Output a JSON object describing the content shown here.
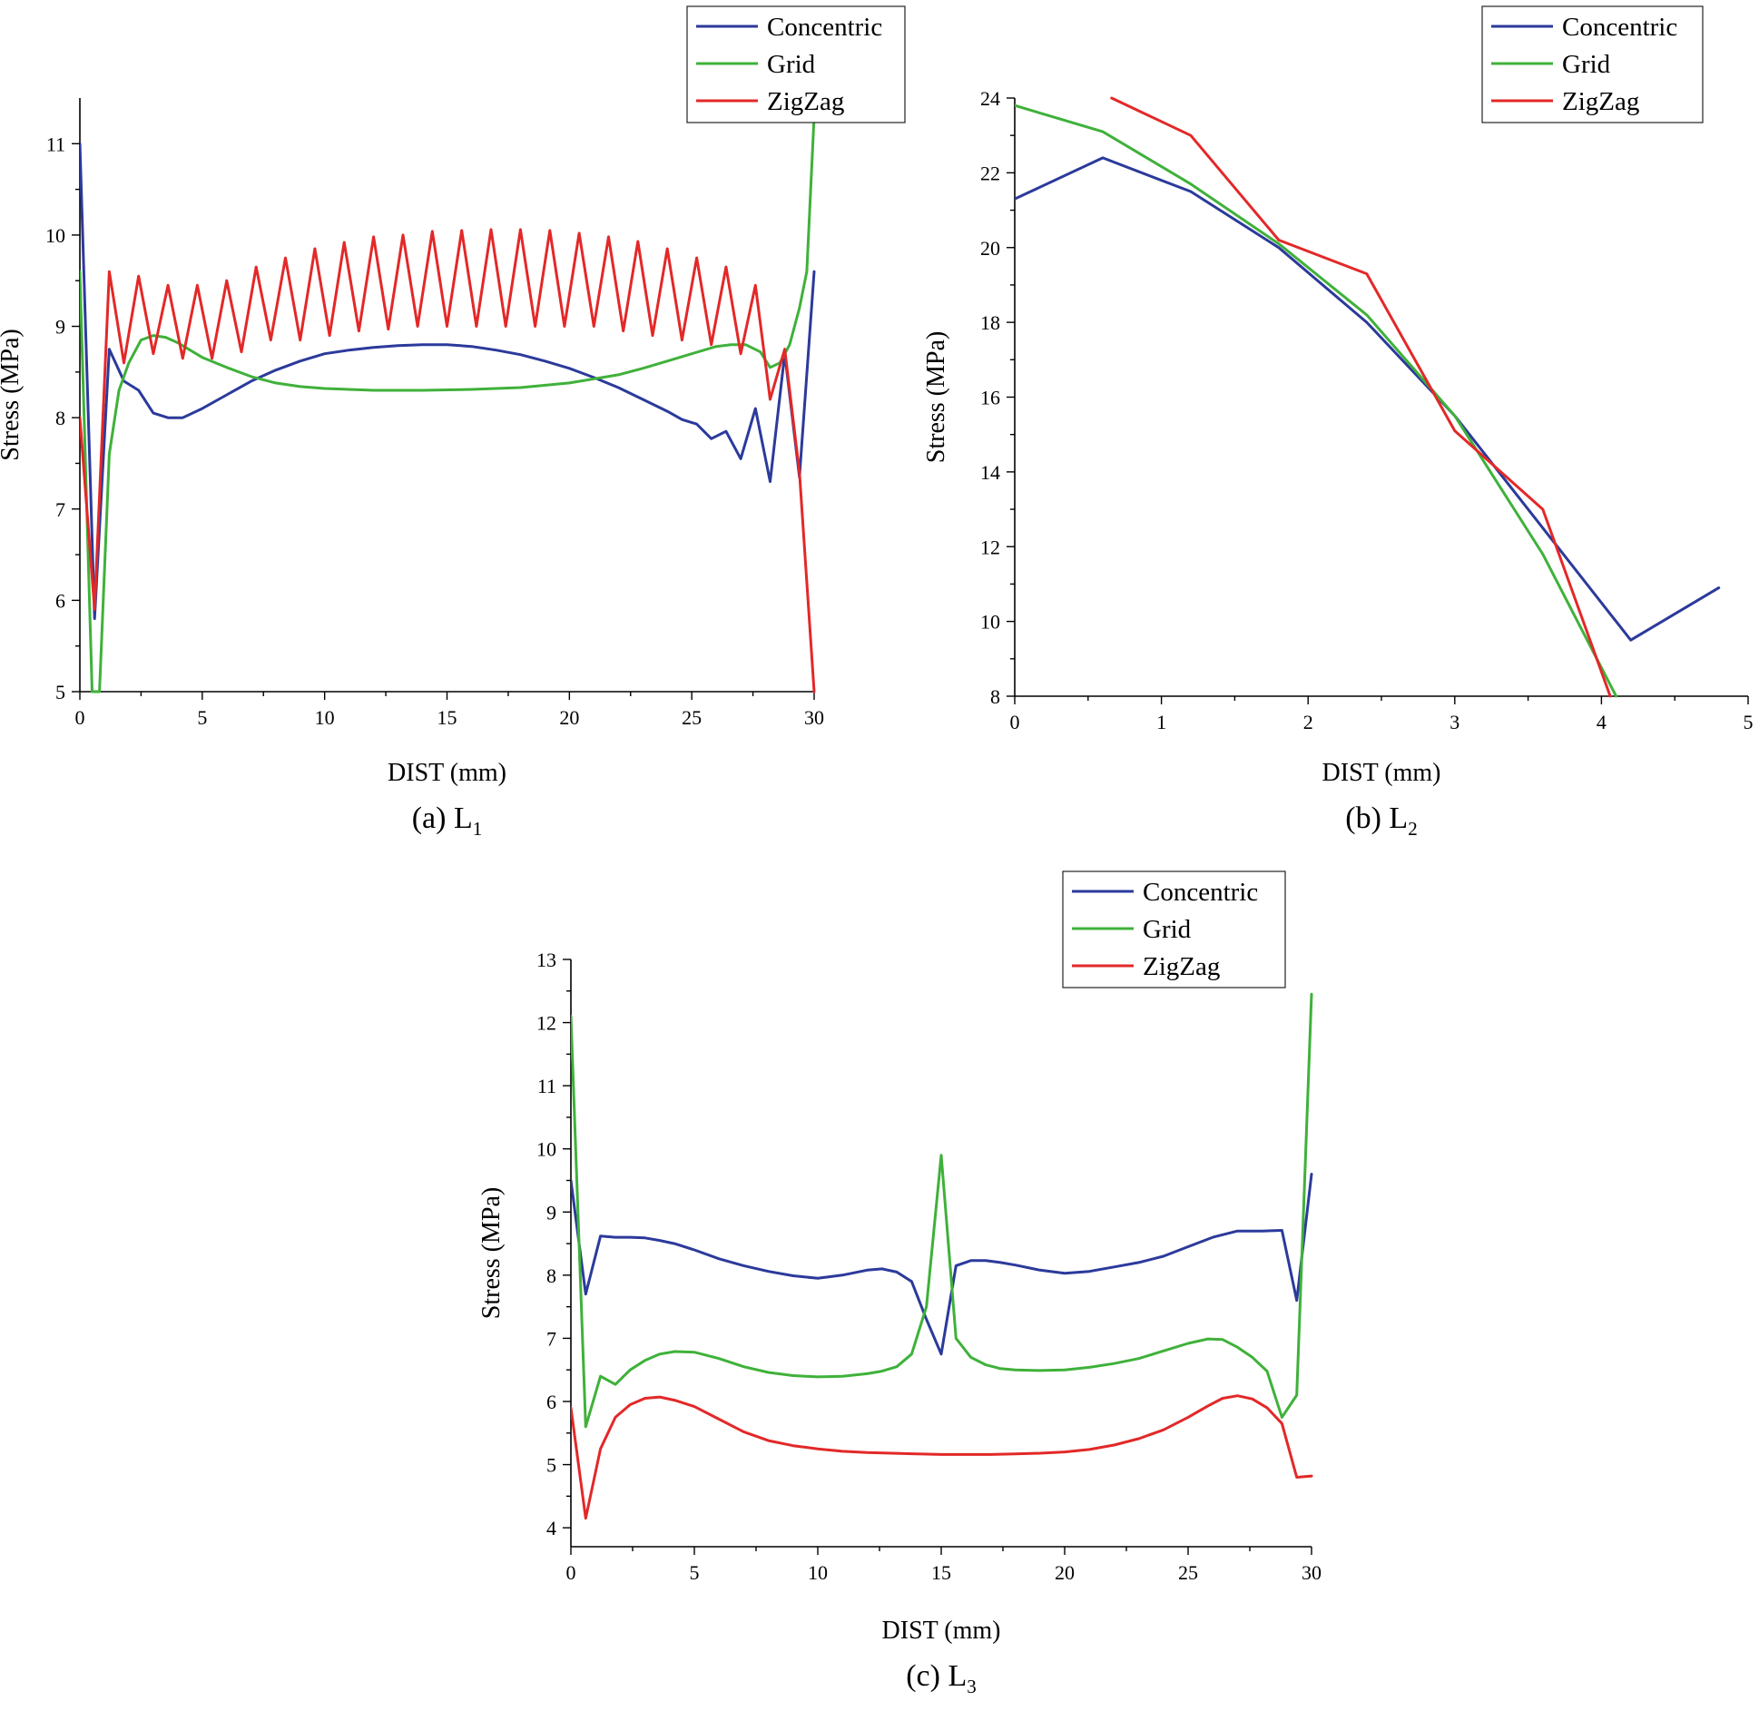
{
  "chart_data": [
    {
      "type": "line",
      "panel": "a",
      "caption": "(a) L",
      "caption_sub": "1",
      "xlabel": "DIST (mm)",
      "ylabel": "Stress (MPa)",
      "xlim": [
        0,
        30
      ],
      "ylim": [
        5,
        11.5
      ],
      "xticks": [
        0,
        5,
        10,
        15,
        20,
        25,
        30
      ],
      "yticks": [
        5,
        6,
        7,
        8,
        9,
        10,
        11
      ],
      "legend_position": "top-right",
      "series": [
        {
          "name": "Concentric",
          "color": "#2b3a9b",
          "x": [
            0,
            0.6,
            1.2,
            1.8,
            2.4,
            3.0,
            3.6,
            4.2,
            5,
            6,
            7,
            8,
            9,
            10,
            11,
            12,
            13,
            14,
            15,
            16,
            17,
            18,
            19,
            20,
            21,
            22,
            23,
            24,
            24.6,
            25.2,
            25.8,
            26.4,
            27.0,
            27.6,
            28.2,
            28.8,
            29.4,
            30
          ],
          "y": [
            11.0,
            5.8,
            8.75,
            8.4,
            8.3,
            8.05,
            8.0,
            8.0,
            8.1,
            8.25,
            8.4,
            8.52,
            8.62,
            8.7,
            8.74,
            8.77,
            8.79,
            8.8,
            8.8,
            8.78,
            8.74,
            8.69,
            8.62,
            8.54,
            8.44,
            8.33,
            8.2,
            8.07,
            7.98,
            7.93,
            7.77,
            7.85,
            7.55,
            8.1,
            7.3,
            8.7,
            7.35,
            9.6
          ]
        },
        {
          "name": "Grid",
          "color": "#3fb13a",
          "x": [
            0,
            0.5,
            0.8,
            1.2,
            1.6,
            2.0,
            2.5,
            3.0,
            3.5,
            4,
            5,
            6,
            7,
            8,
            9,
            10,
            12,
            14,
            16,
            18,
            20,
            22,
            23,
            24,
            25,
            26,
            26.6,
            27.2,
            27.8,
            28.2,
            28.6,
            29.0,
            29.4,
            29.7,
            30
          ],
          "y": [
            9.6,
            5.0,
            5.0,
            7.6,
            8.3,
            8.6,
            8.85,
            8.9,
            8.88,
            8.82,
            8.66,
            8.55,
            8.45,
            8.38,
            8.34,
            8.32,
            8.3,
            8.3,
            8.31,
            8.33,
            8.38,
            8.47,
            8.54,
            8.62,
            8.7,
            8.78,
            8.8,
            8.8,
            8.72,
            8.55,
            8.6,
            8.8,
            9.2,
            9.6,
            11.3
          ]
        },
        {
          "name": "ZigZag",
          "color": "#e32828",
          "x": [
            0,
            0.6,
            1.2,
            1.8,
            2.4,
            3.0,
            3.6,
            4.2,
            4.8,
            5.4,
            6.0,
            6.6,
            7.2,
            7.8,
            8.4,
            9.0,
            9.6,
            10.2,
            10.8,
            11.4,
            12.0,
            12.6,
            13.2,
            13.8,
            14.4,
            15.0,
            15.6,
            16.2,
            16.8,
            17.4,
            18.0,
            18.6,
            19.2,
            19.8,
            20.4,
            21.0,
            21.6,
            22.2,
            22.8,
            23.4,
            24.0,
            24.6,
            25.2,
            25.8,
            26.4,
            27.0,
            27.6,
            28.2,
            28.8,
            29.4,
            30
          ],
          "y": [
            8.0,
            5.9,
            9.6,
            8.6,
            9.55,
            8.7,
            9.45,
            8.65,
            9.45,
            8.65,
            9.5,
            8.72,
            9.65,
            8.85,
            9.75,
            8.85,
            9.85,
            8.9,
            9.92,
            8.95,
            9.98,
            8.97,
            10.0,
            9.0,
            10.04,
            9.0,
            10.05,
            9.0,
            10.06,
            9.0,
            10.06,
            9.0,
            10.05,
            9.0,
            10.02,
            9.0,
            9.98,
            8.95,
            9.93,
            8.9,
            9.85,
            8.85,
            9.75,
            8.8,
            9.65,
            8.7,
            9.45,
            8.2,
            8.75,
            7.4,
            5.0
          ]
        }
      ]
    },
    {
      "type": "line",
      "panel": "b",
      "caption": "(b) L",
      "caption_sub": "2",
      "xlabel": "DIST (mm)",
      "ylabel": "Stress (MPa)",
      "xlim": [
        0,
        5
      ],
      "ylim": [
        8,
        24
      ],
      "xticks": [
        0,
        1,
        2,
        3,
        4,
        5
      ],
      "yticks": [
        8,
        10,
        12,
        14,
        16,
        18,
        20,
        22,
        24
      ],
      "legend_position": "top-right",
      "series": [
        {
          "name": "Concentric",
          "color": "#2b3a9b",
          "x": [
            0,
            0.6,
            1.2,
            1.8,
            2.4,
            3.0,
            3.6,
            4.2,
            4.8
          ],
          "y": [
            21.3,
            22.4,
            21.5,
            20.0,
            18.0,
            15.5,
            12.5,
            9.5,
            10.9
          ]
        },
        {
          "name": "Grid",
          "color": "#3fb13a",
          "x": [
            0,
            0.6,
            1.2,
            1.8,
            2.4,
            3.0,
            3.6,
            4.1
          ],
          "y": [
            23.8,
            23.1,
            21.7,
            20.1,
            18.2,
            15.5,
            11.8,
            8.0
          ]
        },
        {
          "name": "ZigZag",
          "color": "#e32828",
          "x": [
            0.66,
            1.2,
            1.8,
            2.4,
            3.0,
            3.6,
            4.06
          ],
          "y": [
            24.0,
            23.0,
            20.2,
            19.3,
            15.1,
            13.0,
            8.0
          ]
        }
      ]
    },
    {
      "type": "line",
      "panel": "c",
      "caption": "(c) L",
      "caption_sub": "3",
      "xlabel": "DIST (mm)",
      "ylabel": "Stress (MPa)",
      "xlim": [
        0,
        30
      ],
      "ylim": [
        3.7,
        13
      ],
      "xticks": [
        0,
        5,
        10,
        15,
        20,
        25,
        30
      ],
      "yticks": [
        4,
        5,
        6,
        7,
        8,
        9,
        10,
        11,
        12,
        13
      ],
      "legend_position": "top-right",
      "series": [
        {
          "name": "Concentric",
          "color": "#2b3a9b",
          "x": [
            0,
            0.6,
            1.2,
            1.8,
            2.4,
            3.0,
            3.6,
            4.2,
            5,
            6,
            7,
            8,
            9,
            10,
            11,
            12,
            12.6,
            13.2,
            13.8,
            14.4,
            15.0,
            15.6,
            16.2,
            16.8,
            17.4,
            18,
            19,
            20,
            21,
            22,
            23,
            24,
            25,
            26,
            27,
            28,
            28.8,
            29.4,
            30
          ],
          "y": [
            9.5,
            7.7,
            8.62,
            8.6,
            8.6,
            8.59,
            8.55,
            8.5,
            8.4,
            8.26,
            8.15,
            8.06,
            7.99,
            7.95,
            8.0,
            8.08,
            8.1,
            8.05,
            7.9,
            7.3,
            6.75,
            8.15,
            8.23,
            8.23,
            8.2,
            8.16,
            8.08,
            8.03,
            8.06,
            8.13,
            8.2,
            8.3,
            8.45,
            8.6,
            8.7,
            8.7,
            8.71,
            7.6,
            9.6
          ]
        },
        {
          "name": "Grid",
          "color": "#3fb13a",
          "x": [
            0,
            0.6,
            1.2,
            1.8,
            2.4,
            3.0,
            3.6,
            4.2,
            5,
            6,
            7,
            8,
            9,
            10,
            11,
            12,
            12.6,
            13.2,
            13.8,
            14.4,
            15.0,
            15.6,
            16.2,
            16.8,
            17.4,
            18,
            19,
            20,
            21,
            22,
            23,
            24,
            25,
            25.8,
            26.4,
            27.0,
            27.6,
            28.2,
            28.8,
            29.4,
            30
          ],
          "y": [
            12.1,
            5.6,
            6.4,
            6.27,
            6.5,
            6.65,
            6.75,
            6.79,
            6.78,
            6.68,
            6.55,
            6.46,
            6.41,
            6.39,
            6.4,
            6.44,
            6.48,
            6.55,
            6.75,
            7.5,
            9.9,
            7.0,
            6.7,
            6.58,
            6.52,
            6.5,
            6.49,
            6.5,
            6.54,
            6.6,
            6.68,
            6.8,
            6.92,
            6.99,
            6.98,
            6.86,
            6.7,
            6.48,
            5.75,
            6.1,
            12.45
          ]
        },
        {
          "name": "ZigZag",
          "color": "#e32828",
          "x": [
            0,
            0.6,
            1.2,
            1.8,
            2.4,
            3.0,
            3.6,
            4.2,
            5,
            6,
            7,
            8,
            9,
            10,
            11,
            12,
            13,
            14,
            15,
            16,
            17,
            18,
            19,
            20,
            21,
            22,
            23,
            24,
            25,
            25.8,
            26.4,
            27.0,
            27.6,
            28.2,
            28.8,
            29.4,
            30
          ],
          "y": [
            5.9,
            4.15,
            5.25,
            5.75,
            5.95,
            6.05,
            6.07,
            6.02,
            5.92,
            5.72,
            5.52,
            5.38,
            5.3,
            5.25,
            5.21,
            5.19,
            5.18,
            5.17,
            5.16,
            5.16,
            5.16,
            5.17,
            5.18,
            5.2,
            5.24,
            5.31,
            5.41,
            5.55,
            5.75,
            5.93,
            6.05,
            6.09,
            6.04,
            5.9,
            5.65,
            4.8,
            4.82
          ]
        }
      ]
    }
  ]
}
